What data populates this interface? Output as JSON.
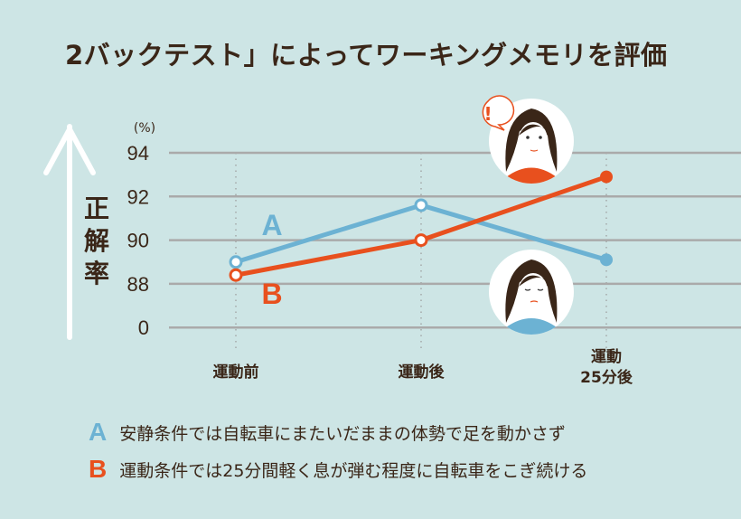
{
  "title": "2バックテスト」によってワーキングメモリを評価",
  "chart_data": {
    "type": "line",
    "title": "2バックテスト」によってワーキングメモリを評価",
    "ylabel": "正解率",
    "yunit": "(%)",
    "yticks": [
      "94",
      "92",
      "90",
      "88",
      "0"
    ],
    "ylim": [
      88,
      94
    ],
    "axis_break": "0 to 88",
    "grid": true,
    "categories": [
      "運動前",
      "運動後",
      "運動\n25分後"
    ],
    "category_lines": [
      [
        "運動前"
      ],
      [
        "運動後"
      ],
      [
        "運動",
        "25分後"
      ]
    ],
    "series": [
      {
        "name": "A",
        "values": [
          89.0,
          91.6,
          89.1
        ],
        "color": "#6cb2d3"
      },
      {
        "name": "B",
        "values": [
          88.4,
          90.0,
          92.9
        ],
        "color": "#e8501e"
      }
    ]
  },
  "legend": [
    {
      "key": "A",
      "text": "安静条件では自転車にまたいだままの体勢で足を動かさず",
      "color": "#6cb2d3"
    },
    {
      "key": "B",
      "text": "運動条件では25分間軽く息が弾む程度に自転車をこぎ続ける",
      "color": "#e8501e"
    }
  ],
  "colors": {
    "background": "#cde5e5",
    "text": "#3a2618",
    "grid": "#aaaaaa",
    "arrow": "#ffffff"
  },
  "icons": [
    "up-arrow-icon",
    "woman-alert-icon",
    "woman-tired-icon",
    "exclamation-bubble-icon"
  ],
  "alert_mark": "!"
}
